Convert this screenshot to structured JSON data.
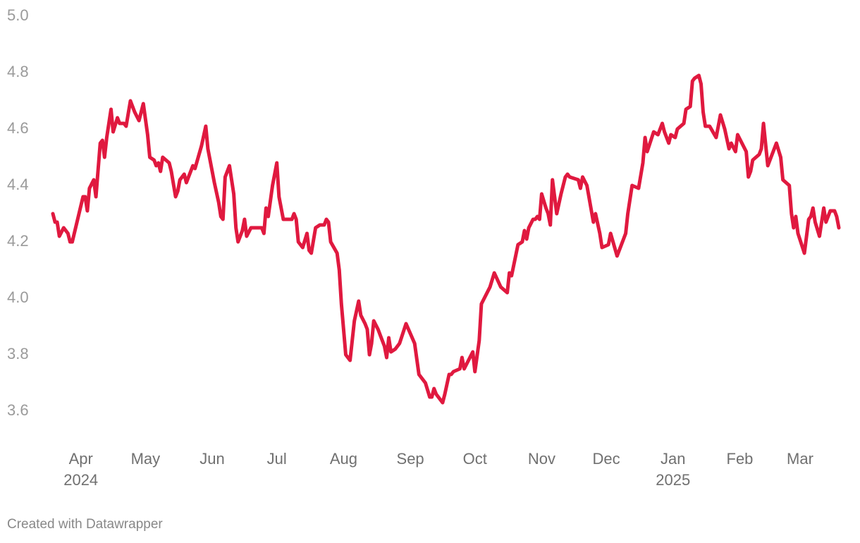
{
  "chart_data": {
    "type": "line",
    "color": "#e0193f",
    "x": [
      "2024-03-19",
      "2024-03-20",
      "2024-03-21",
      "2024-03-22",
      "2024-03-24",
      "2024-03-26",
      "2024-03-27",
      "2024-03-28",
      "2024-04-02",
      "2024-04-03",
      "2024-04-04",
      "2024-04-05",
      "2024-04-07",
      "2024-04-08",
      "2024-04-10",
      "2024-04-11",
      "2024-04-12",
      "2024-04-13",
      "2024-04-15",
      "2024-04-16",
      "2024-04-18",
      "2024-04-19",
      "2024-04-21",
      "2024-04-22",
      "2024-04-24",
      "2024-04-26",
      "2024-04-28",
      "2024-04-30",
      "2024-05-02",
      "2024-05-03",
      "2024-05-05",
      "2024-05-06",
      "2024-05-07",
      "2024-05-08",
      "2024-05-09",
      "2024-05-12",
      "2024-05-13",
      "2024-05-15",
      "2024-05-16",
      "2024-05-17",
      "2024-05-19",
      "2024-05-20",
      "2024-05-23",
      "2024-05-24",
      "2024-05-27",
      "2024-05-29",
      "2024-05-30",
      "2024-06-02",
      "2024-06-04",
      "2024-06-05",
      "2024-06-06",
      "2024-06-07",
      "2024-06-09",
      "2024-06-11",
      "2024-06-12",
      "2024-06-13",
      "2024-06-15",
      "2024-06-16",
      "2024-06-17",
      "2024-06-19",
      "2024-06-22",
      "2024-06-24",
      "2024-06-25",
      "2024-06-26",
      "2024-06-27",
      "2024-06-29",
      "2024-07-01",
      "2024-07-02",
      "2024-07-04",
      "2024-07-08",
      "2024-07-09",
      "2024-07-10",
      "2024-07-11",
      "2024-07-13",
      "2024-07-15",
      "2024-07-16",
      "2024-07-17",
      "2024-07-19",
      "2024-07-21",
      "2024-07-23",
      "2024-07-24",
      "2024-07-25",
      "2024-07-26",
      "2024-07-29",
      "2024-07-30",
      "2024-07-31",
      "2024-08-02",
      "2024-08-04",
      "2024-08-06",
      "2024-08-08",
      "2024-08-09",
      "2024-08-11",
      "2024-08-12",
      "2024-08-13",
      "2024-08-14",
      "2024-08-15",
      "2024-08-17",
      "2024-08-18",
      "2024-08-20",
      "2024-08-21",
      "2024-08-22",
      "2024-08-23",
      "2024-08-25",
      "2024-08-27",
      "2024-08-30",
      "2024-09-03",
      "2024-09-05",
      "2024-09-08",
      "2024-09-10",
      "2024-09-11",
      "2024-09-12",
      "2024-09-13",
      "2024-09-16",
      "2024-09-17",
      "2024-09-19",
      "2024-09-20",
      "2024-09-21",
      "2024-09-24",
      "2024-09-25",
      "2024-09-26",
      "2024-09-30",
      "2024-10-01",
      "2024-10-03",
      "2024-10-04",
      "2024-10-08",
      "2024-10-10",
      "2024-10-13",
      "2024-10-16",
      "2024-10-17",
      "2024-10-18",
      "2024-10-21",
      "2024-10-23",
      "2024-10-24",
      "2024-10-25",
      "2024-10-26",
      "2024-10-28",
      "2024-10-29",
      "2024-10-30",
      "2024-10-31",
      "2024-11-01",
      "2024-11-03",
      "2024-11-04",
      "2024-11-05",
      "2024-11-06",
      "2024-11-08",
      "2024-11-10",
      "2024-11-12",
      "2024-11-13",
      "2024-11-14",
      "2024-11-18",
      "2024-11-19",
      "2024-11-20",
      "2024-11-22",
      "2024-11-25",
      "2024-11-26",
      "2024-11-28",
      "2024-11-29",
      "2024-12-02",
      "2024-12-03",
      "2024-12-06",
      "2024-12-08",
      "2024-12-10",
      "2024-12-11",
      "2024-12-13",
      "2024-12-16",
      "2024-12-18",
      "2024-12-19",
      "2024-12-20",
      "2024-12-23",
      "2024-12-25",
      "2024-12-27",
      "2024-12-28",
      "2024-12-30",
      "2024-12-31",
      "2025-01-02",
      "2025-01-03",
      "2025-01-06",
      "2025-01-07",
      "2025-01-09",
      "2025-01-10",
      "2025-01-11",
      "2025-01-13",
      "2025-01-14",
      "2025-01-15",
      "2025-01-16",
      "2025-01-18",
      "2025-01-21",
      "2025-01-23",
      "2025-01-25",
      "2025-01-27",
      "2025-01-28",
      "2025-01-30",
      "2025-01-31",
      "2025-02-02",
      "2025-02-04",
      "2025-02-05",
      "2025-02-06",
      "2025-02-07",
      "2025-02-10",
      "2025-02-11",
      "2025-02-12",
      "2025-02-14",
      "2025-02-16",
      "2025-02-18",
      "2025-02-20",
      "2025-02-21",
      "2025-02-24",
      "2025-02-25",
      "2025-02-26",
      "2025-02-27",
      "2025-02-28",
      "2025-03-03",
      "2025-03-05",
      "2025-03-06",
      "2025-03-07",
      "2025-03-08",
      "2025-03-10",
      "2025-03-12",
      "2025-03-13",
      "2025-03-15",
      "2025-03-17",
      "2025-03-18",
      "2025-03-19"
    ],
    "values": [
      4.3,
      4.27,
      4.27,
      4.22,
      4.25,
      4.23,
      4.2,
      4.2,
      4.36,
      4.36,
      4.31,
      4.39,
      4.42,
      4.36,
      4.55,
      4.56,
      4.5,
      4.57,
      4.67,
      4.59,
      4.64,
      4.62,
      4.62,
      4.61,
      4.7,
      4.66,
      4.63,
      4.69,
      4.58,
      4.5,
      4.49,
      4.47,
      4.48,
      4.45,
      4.5,
      4.48,
      4.45,
      4.36,
      4.38,
      4.42,
      4.44,
      4.41,
      4.47,
      4.46,
      4.54,
      4.61,
      4.53,
      4.41,
      4.34,
      4.29,
      4.28,
      4.43,
      4.47,
      4.37,
      4.25,
      4.2,
      4.24,
      4.28,
      4.22,
      4.25,
      4.25,
      4.25,
      4.23,
      4.32,
      4.29,
      4.4,
      4.48,
      4.36,
      4.28,
      4.28,
      4.3,
      4.28,
      4.2,
      4.18,
      4.23,
      4.17,
      4.16,
      4.25,
      4.26,
      4.26,
      4.28,
      4.27,
      4.2,
      4.16,
      4.1,
      3.98,
      3.8,
      3.78,
      3.92,
      3.99,
      3.94,
      3.91,
      3.89,
      3.8,
      3.84,
      3.92,
      3.89,
      3.87,
      3.83,
      3.79,
      3.86,
      3.81,
      3.82,
      3.84,
      3.91,
      3.84,
      3.73,
      3.7,
      3.65,
      3.65,
      3.68,
      3.66,
      3.63,
      3.66,
      3.73,
      3.73,
      3.74,
      3.75,
      3.79,
      3.75,
      3.81,
      3.74,
      3.85,
      3.98,
      4.04,
      4.09,
      4.04,
      4.02,
      4.09,
      4.08,
      4.19,
      4.2,
      4.24,
      4.21,
      4.25,
      4.28,
      4.28,
      4.29,
      4.28,
      4.37,
      4.32,
      4.3,
      4.26,
      4.42,
      4.3,
      4.37,
      4.43,
      4.44,
      4.43,
      4.42,
      4.39,
      4.43,
      4.4,
      4.27,
      4.3,
      4.23,
      4.18,
      4.19,
      4.23,
      4.15,
      4.19,
      4.23,
      4.3,
      4.4,
      4.39,
      4.48,
      4.57,
      4.52,
      4.59,
      4.58,
      4.62,
      4.59,
      4.55,
      4.58,
      4.57,
      4.6,
      4.62,
      4.67,
      4.68,
      4.77,
      4.78,
      4.79,
      4.76,
      4.66,
      4.61,
      4.61,
      4.57,
      4.65,
      4.6,
      4.53,
      4.55,
      4.52,
      4.58,
      4.55,
      4.52,
      4.43,
      4.45,
      4.49,
      4.51,
      4.53,
      4.62,
      4.47,
      4.51,
      4.55,
      4.5,
      4.42,
      4.4,
      4.3,
      4.25,
      4.29,
      4.23,
      4.16,
      4.28,
      4.29,
      4.32,
      4.27,
      4.22,
      4.32,
      4.27,
      4.31,
      4.31,
      4.29,
      4.25
    ],
    "xlim": [
      "2024-03-19",
      "2025-03-19"
    ],
    "xticks": [
      {
        "value": "2024-04-01",
        "label": "Apr\n2024"
      },
      {
        "value": "2024-05-01",
        "label": "May"
      },
      {
        "value": "2024-06-01",
        "label": "Jun"
      },
      {
        "value": "2024-07-01",
        "label": "Jul"
      },
      {
        "value": "2024-08-01",
        "label": "Aug"
      },
      {
        "value": "2024-09-01",
        "label": "Sep"
      },
      {
        "value": "2024-10-01",
        "label": "Oct"
      },
      {
        "value": "2024-11-01",
        "label": "Nov"
      },
      {
        "value": "2024-12-01",
        "label": "Dec"
      },
      {
        "value": "2025-01-01",
        "label": "Jan\n2025"
      },
      {
        "value": "2025-02-01",
        "label": "Feb"
      },
      {
        "value": "2025-03-01",
        "label": "Mar"
      }
    ],
    "ylim": [
      3.5,
      5.0
    ],
    "yticks": [
      3.6,
      3.8,
      {
        "value": 4,
        "label": "4.0"
      },
      4.2,
      4.4,
      4.6,
      4.8,
      {
        "value": 5,
        "label": "5.0"
      }
    ],
    "grid": false
  },
  "footer": "Created with Datawrapper"
}
